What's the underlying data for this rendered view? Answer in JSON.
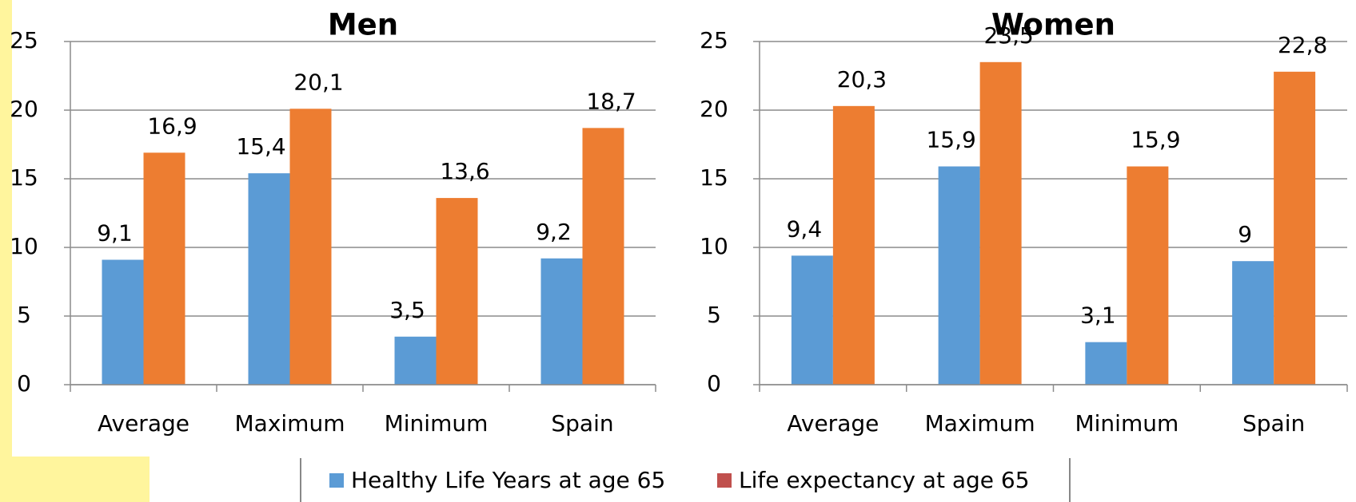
{
  "charts": [
    {
      "type": "bar",
      "title": "Men",
      "categories": [
        "Average",
        "Maximum",
        "Minimum",
        "Spain"
      ],
      "series": [
        {
          "color": "#5b9bd5",
          "values": [
            9.1,
            15.4,
            3.5,
            9.2
          ],
          "value_labels": [
            "9,1",
            "15,4",
            "3,5",
            "9,2"
          ]
        },
        {
          "color": "#ed7d31",
          "values": [
            16.9,
            20.1,
            13.6,
            18.7
          ],
          "value_labels": [
            "16,9",
            "20,1",
            "13,6",
            "18,7"
          ]
        }
      ],
      "ylim": [
        0,
        25
      ],
      "yticks": [
        0,
        5,
        10,
        15,
        20,
        25
      ],
      "grid": true
    },
    {
      "type": "bar",
      "title": "Women",
      "categories": [
        "Average",
        "Maximum",
        "Minimum",
        "Spain"
      ],
      "series": [
        {
          "color": "#5b9bd5",
          "values": [
            9.4,
            15.9,
            3.1,
            9
          ],
          "value_labels": [
            "9,4",
            "15,9",
            "3,1",
            "9"
          ]
        },
        {
          "color": "#ed7d31",
          "values": [
            20.3,
            23.5,
            15.9,
            22.8
          ],
          "value_labels": [
            "20,3",
            "23,5",
            "15,9",
            "22,8"
          ]
        }
      ],
      "ylim": [
        0,
        25
      ],
      "yticks": [
        0,
        5,
        10,
        15,
        20,
        25
      ],
      "grid": true
    }
  ],
  "legend": [
    {
      "name": "Healthy Life Years at age 65",
      "color": "#5b9bd5"
    },
    {
      "name": "Life expectancy at age 65",
      "color": "#c0504d"
    }
  ]
}
